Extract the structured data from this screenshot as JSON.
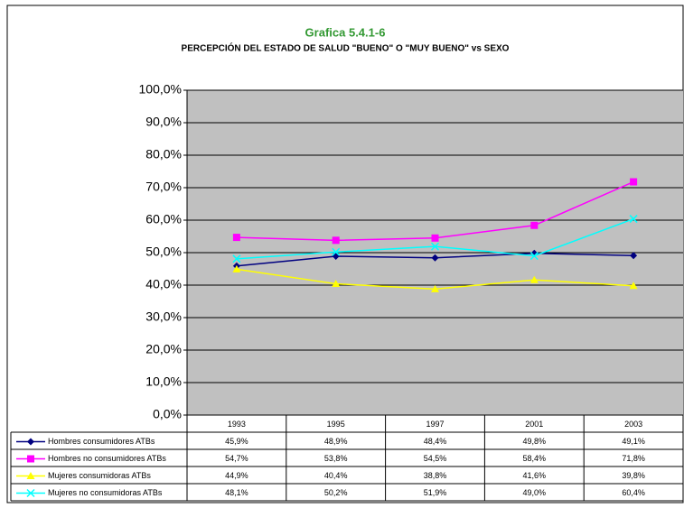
{
  "chart_data": {
    "type": "line",
    "title": "Grafica 5.4.1-6",
    "subtitle": "PERCEPCIÓN DEL ESTADO DE SALUD \"BUENO\" O \"MUY BUENO\"  vs SEXO",
    "categories": [
      "1993",
      "1995",
      "1997",
      "2001",
      "2003"
    ],
    "ylim": [
      0,
      100
    ],
    "yticks": [
      {
        "value": 0,
        "label": "0,0%"
      },
      {
        "value": 10,
        "label": "10,0%"
      },
      {
        "value": 20,
        "label": "20,0%"
      },
      {
        "value": 30,
        "label": "30,0%"
      },
      {
        "value": 40,
        "label": "40,0%"
      },
      {
        "value": 50,
        "label": "50,0%"
      },
      {
        "value": 60,
        "label": "60,0%"
      },
      {
        "value": 70,
        "label": "70,0%"
      },
      {
        "value": 80,
        "label": "80,0%"
      },
      {
        "value": 90,
        "label": "90,0%"
      },
      {
        "value": 100,
        "label": "100,0%"
      }
    ],
    "grid": true,
    "series": [
      {
        "name": "Hombres consumidores ATBs",
        "color": "#000080",
        "marker": "diamond",
        "values": [
          45.9,
          48.9,
          48.4,
          49.8,
          49.1
        ],
        "value_labels": [
          "45,9%",
          "48,9%",
          "48,4%",
          "49,8%",
          "49,1%"
        ]
      },
      {
        "name": "Hombres no consumidores ATBs",
        "color": "#ff00ff",
        "marker": "square",
        "values": [
          54.7,
          53.8,
          54.5,
          58.4,
          71.8
        ],
        "value_labels": [
          "54,7%",
          "53,8%",
          "54,5%",
          "58,4%",
          "71,8%"
        ]
      },
      {
        "name": "Mujeres consumidoras ATBs",
        "color": "#ffff00",
        "marker": "triangle",
        "values": [
          44.9,
          40.4,
          38.8,
          41.6,
          39.8
        ],
        "value_labels": [
          "44,9%",
          "40,4%",
          "38,8%",
          "41,6%",
          "39,8%"
        ]
      },
      {
        "name": "Mujeres no consumidoras ATBs",
        "color": "#00ffff",
        "marker": "x",
        "values": [
          48.1,
          50.2,
          51.9,
          49.0,
          60.4
        ],
        "value_labels": [
          "48,1%",
          "50,2%",
          "51,9%",
          "49,0%",
          "60,4%"
        ]
      }
    ]
  }
}
